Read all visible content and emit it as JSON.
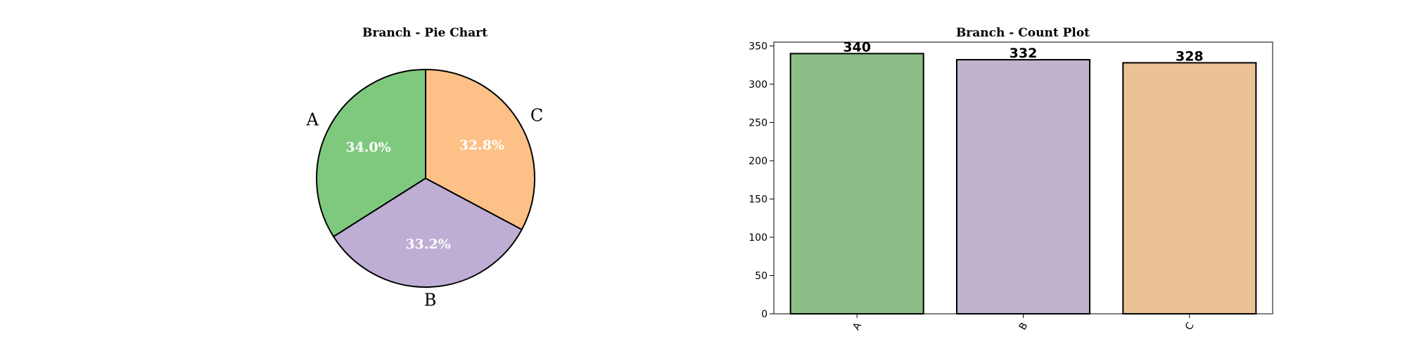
{
  "chart_data": [
    {
      "type": "pie",
      "title": "Branch - Pie Chart",
      "labels": [
        "A",
        "B",
        "C"
      ],
      "values": [
        340,
        332,
        328
      ],
      "percent_labels": [
        "34.0%",
        "33.2%",
        "32.8%"
      ],
      "colors": [
        "#7fc97f",
        "#beaed4",
        "#fdc086"
      ],
      "start_angle_deg": 90,
      "direction": "counterclockwise"
    },
    {
      "type": "bar",
      "title": "Branch - Count Plot",
      "categories": [
        "A",
        "B",
        "C"
      ],
      "values": [
        340,
        332,
        328
      ],
      "value_labels": [
        "340",
        "332",
        "328"
      ],
      "colors": [
        "#8bbf87",
        "#c1b2d0",
        "#ebc196"
      ],
      "xlabel": "",
      "ylabel": "",
      "ylim": [
        0,
        355
      ],
      "yticks": [
        0,
        50,
        100,
        150,
        200,
        250,
        300,
        350
      ],
      "xtick_rotation": 60,
      "grid": false
    }
  ]
}
